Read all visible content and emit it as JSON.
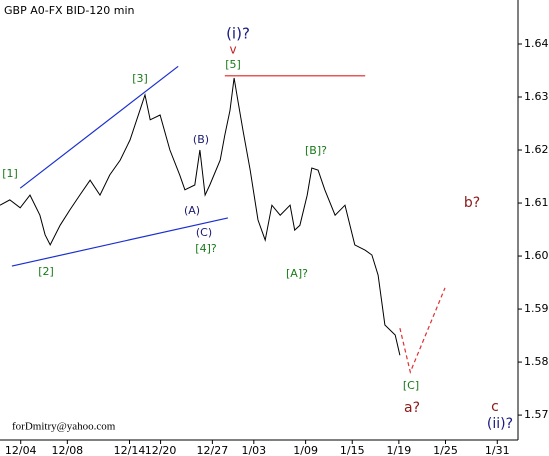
{
  "chart_data": {
    "type": "line",
    "title": "GBP A0-FX BID-120 min",
    "xlim": [
      0,
      100
    ],
    "ylim": [
      1.5653,
      1.6483
    ],
    "xticks": [
      {
        "value": 4,
        "label": "12/04"
      },
      {
        "value": 13,
        "label": "12/08"
      },
      {
        "value": 25,
        "label": "12/14"
      },
      {
        "value": 31,
        "label": "12/20"
      },
      {
        "value": 41,
        "label": "12/27"
      },
      {
        "value": 49,
        "label": "1/03"
      },
      {
        "value": 59,
        "label": "1/09"
      },
      {
        "value": 68,
        "label": "1/15"
      },
      {
        "value": 77,
        "label": "1/19"
      },
      {
        "value": 86,
        "label": "1/25"
      },
      {
        "value": 96,
        "label": "1/31"
      }
    ],
    "yticks": [
      1.57,
      1.58,
      1.59,
      {
        "value": 1.6,
        "label": "1.60"
      },
      1.61,
      1.62,
      1.63,
      1.64
    ],
    "color": "#000000",
    "x": [
      0,
      1.9,
      3.9,
      5.8,
      7.7,
      8.7,
      9.7,
      11.6,
      13.5,
      15.4,
      17.4,
      19.3,
      21.2,
      23.2,
      25.1,
      27.0,
      28.0,
      29.0,
      30.9,
      32.8,
      34.7,
      35.7,
      37.6,
      38.6,
      39.6,
      40.5,
      42.5,
      43.4,
      44.4,
      45.2,
      45.9,
      46.9,
      48.3,
      49.8,
      51.2,
      52.5,
      54.1,
      56.0,
      56.9,
      57.9,
      59.3,
      60.2,
      61.4,
      62.7,
      64.7,
      66.6,
      68.5,
      70.5,
      71.8,
      73.0,
      74.3,
      76.3,
      77.2
    ],
    "values": [
      1.6096,
      1.6106,
      1.6091,
      1.6115,
      1.6077,
      1.604,
      1.6021,
      1.6058,
      1.6087,
      1.6115,
      1.6143,
      1.6115,
      1.6153,
      1.6181,
      1.6219,
      1.6275,
      1.6304,
      1.6257,
      1.6266,
      1.62,
      1.6153,
      1.6125,
      1.6134,
      1.62,
      1.6115,
      1.6134,
      1.6181,
      1.6228,
      1.6275,
      1.6336,
      1.6294,
      1.6238,
      1.6162,
      1.6068,
      1.603,
      1.6096,
      1.6077,
      1.6096,
      1.6049,
      1.6058,
      1.6115,
      1.6166,
      1.6162,
      1.6125,
      1.6077,
      1.6096,
      1.6021,
      1.6011,
      1.6002,
      1.5964,
      1.587,
      1.5851,
      1.5813
    ],
    "projection": {
      "color": "#e03030",
      "x": [
        77.2,
        79.2,
        85.9
      ],
      "values": [
        1.5864,
        1.5781,
        1.594
      ]
    },
    "lines": [
      {
        "color": "#1a2fd0",
        "x": [
          3.9,
          34.4
        ],
        "values": [
          1.6128,
          1.6358
        ]
      },
      {
        "color": "#1a2fd0",
        "x": [
          2.3,
          44.0
        ],
        "values": [
          1.5981,
          1.6072
        ]
      },
      {
        "color": "#e02020",
        "x": [
          43.4,
          70.5
        ],
        "values": [
          1.634,
          1.634
        ]
      }
    ],
    "annotations": [
      {
        "text": "[1]",
        "color": "#1a7a1a"
      },
      {
        "text": "[2]",
        "color": "#1a7a1a"
      },
      {
        "text": "[3]",
        "color": "#1a7a1a"
      },
      {
        "text": "(B)",
        "color": "#1a1a70"
      },
      {
        "text": "(A)",
        "color": "#1a1a70"
      },
      {
        "text": "(C)",
        "color": "#1a1a70"
      },
      {
        "text": "[4]?",
        "color": "#1a7a1a"
      },
      {
        "text": "(i)?",
        "color": "#1a1a80"
      },
      {
        "text": "v",
        "color": "#c02020"
      },
      {
        "text": "[5]",
        "color": "#1a7a1a"
      },
      {
        "text": "[B]?",
        "color": "#1a7a1a"
      },
      {
        "text": "[A]?",
        "color": "#1a7a1a"
      },
      {
        "text": "b?",
        "color": "#8b1a1a"
      },
      {
        "text": "[C]",
        "color": "#1a7a1a"
      },
      {
        "text": "a?",
        "color": "#8b1a1a"
      },
      {
        "text": "c",
        "color": "#8b1a1a"
      },
      {
        "text": "(ii)?",
        "color": "#1a1a80"
      },
      {
        "text": "forDmitry@yahoo.com",
        "color": "#000000"
      }
    ]
  }
}
